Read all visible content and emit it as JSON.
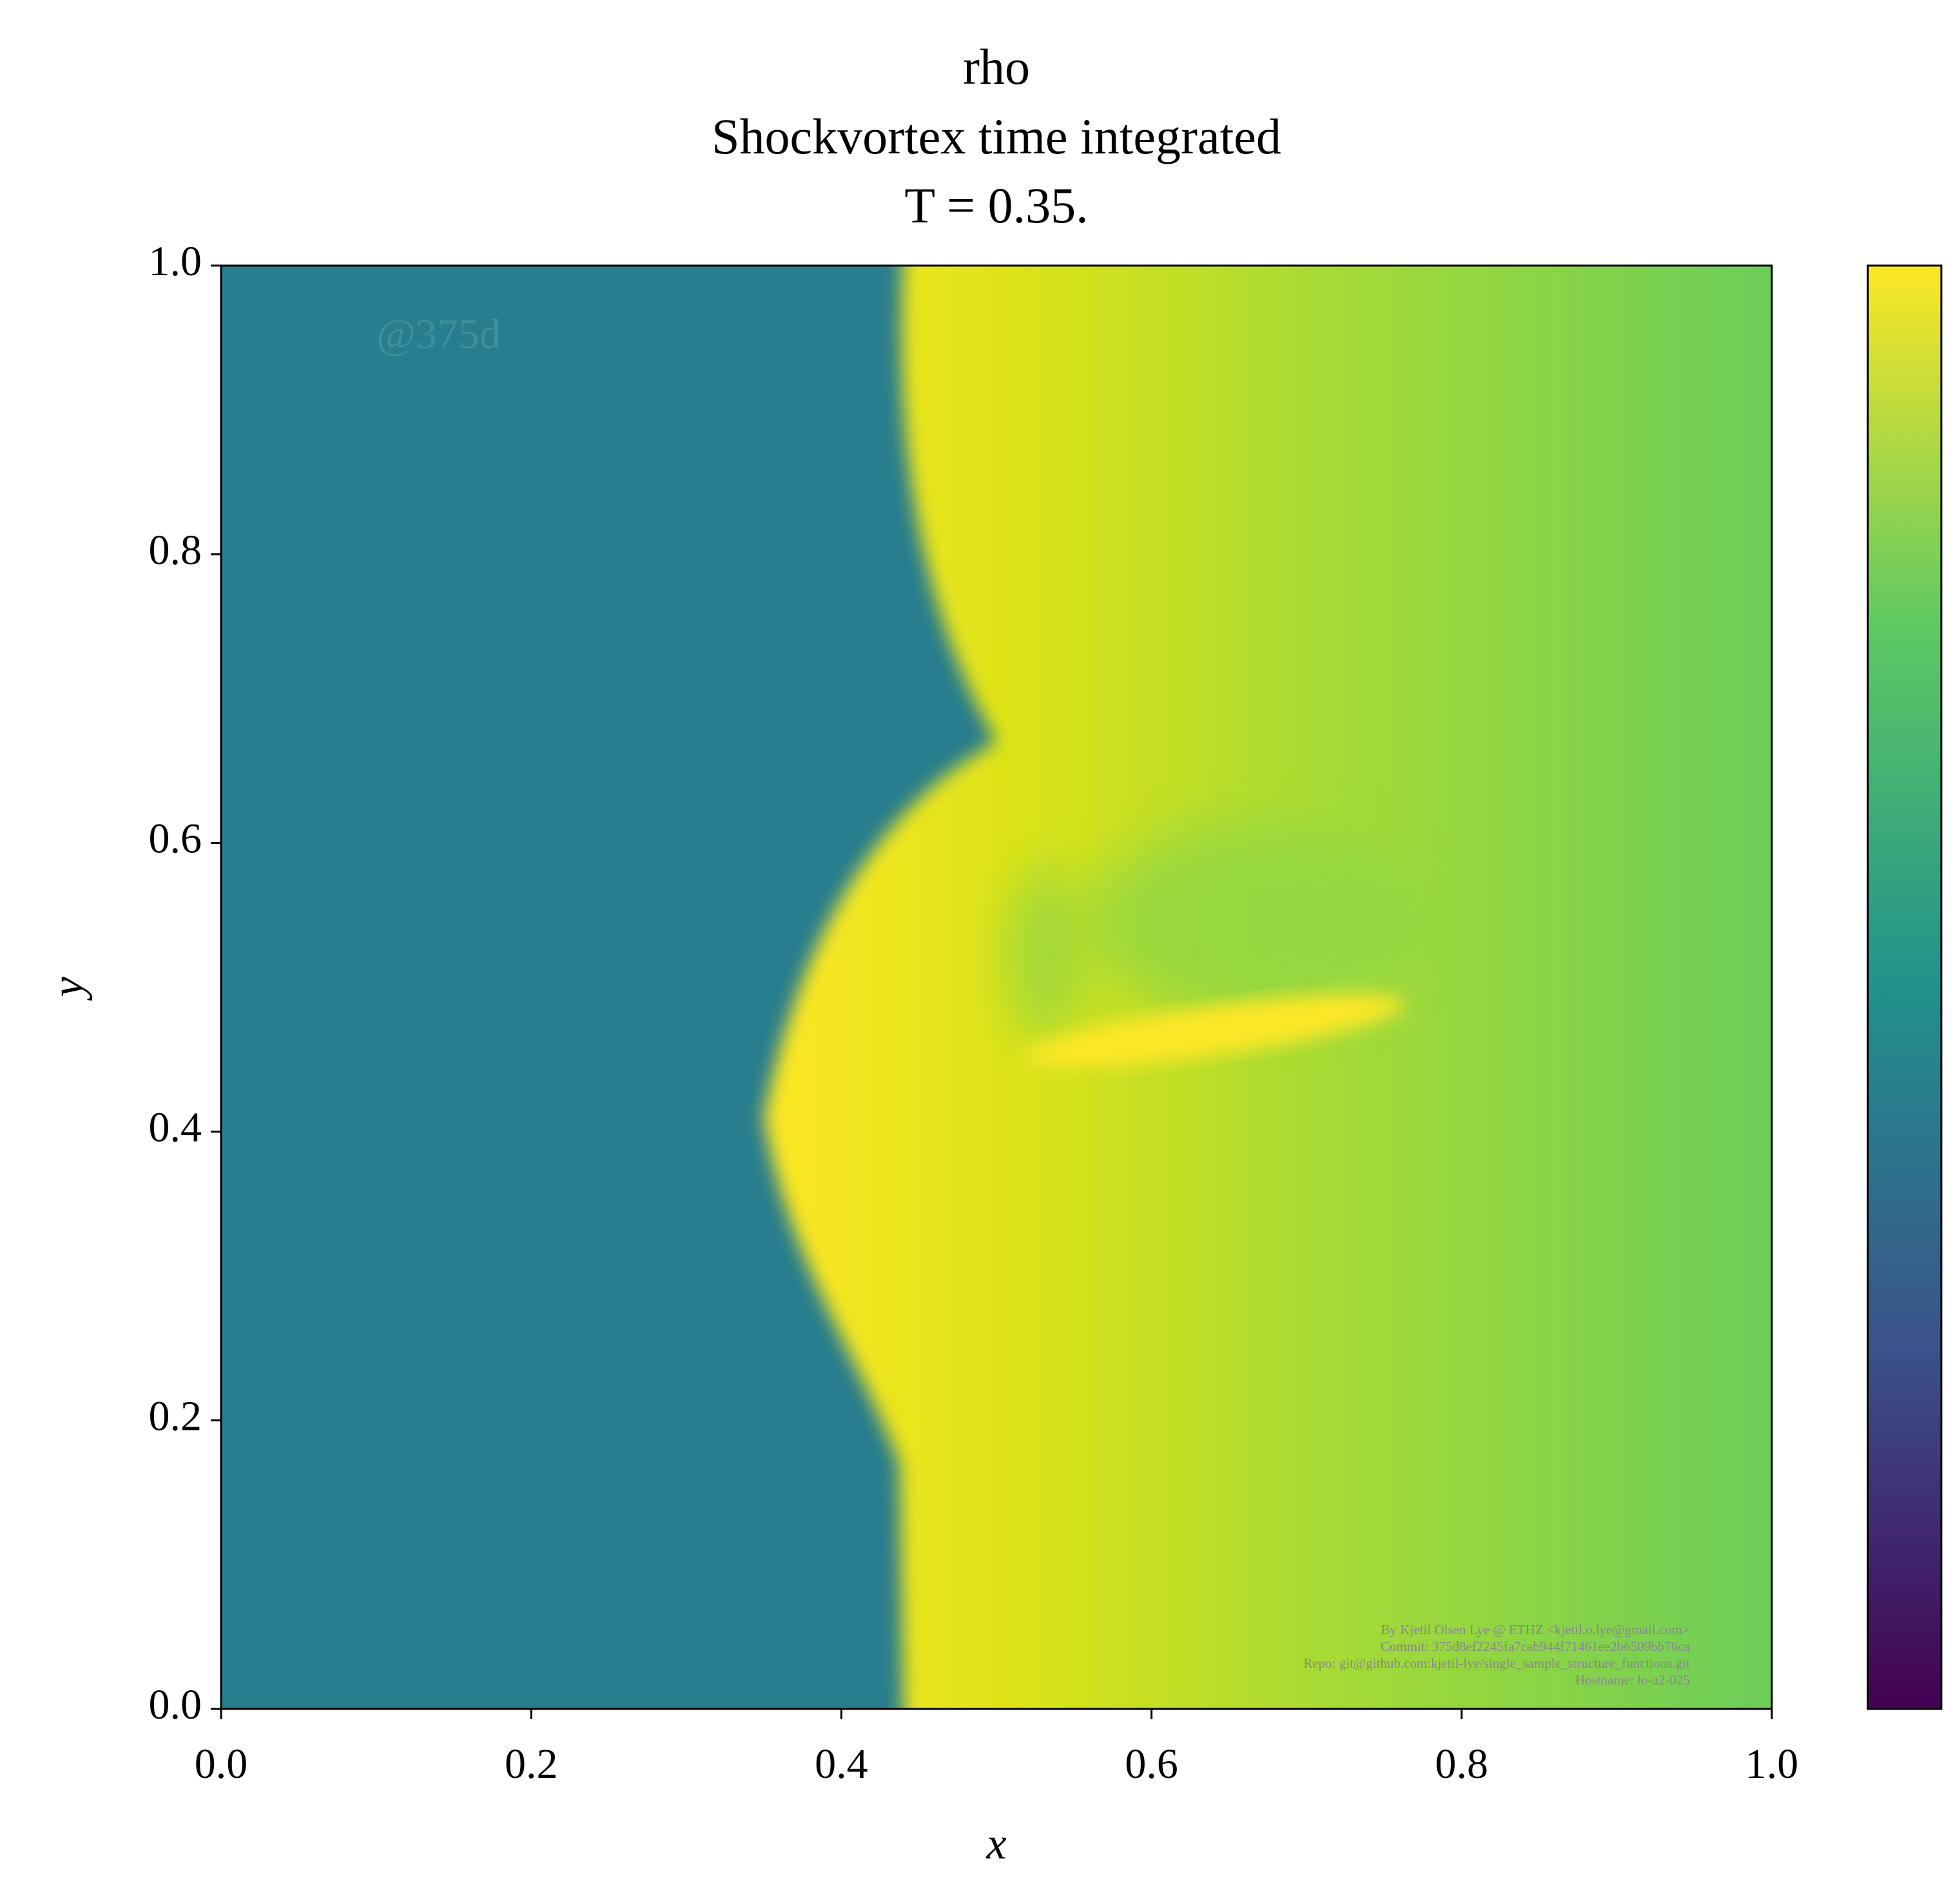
{
  "chart_data": {
    "type": "heatmap",
    "title": "rho",
    "subtitle": "Shockvortex time integrated",
    "annotation": "T = 0.35.",
    "xlabel": "x",
    "ylabel": "y",
    "watermark": "@375d",
    "footer": [
      "By Kjetil Olsen Lye @ ETHZ <kjetil.o.lye@gmail.com>",
      "Commit: 375d8ef2245fa7cab944f71461ee2b6509bb76ca",
      "Repo: git@github.com:kjetil-lye/single_sample_structure_functions.git",
      "Hostname: lo-a2-025"
    ],
    "xlim": [
      0,
      1
    ],
    "ylim": [
      0,
      1
    ],
    "xticks": [
      {
        "value": 0,
        "label": "0.0"
      },
      0.2,
      0.4,
      0.6,
      0.8,
      {
        "value": 1,
        "label": "1.0"
      }
    ],
    "yticks": [
      {
        "value": 0,
        "label": "0.0"
      },
      0.2,
      0.4,
      0.6,
      0.8,
      {
        "value": 1,
        "label": "1.0"
      }
    ],
    "colormap": [
      "#440154",
      "#3b528b",
      "#21918c",
      "#5ec962",
      "#fde725"
    ],
    "colorbar": true
  }
}
